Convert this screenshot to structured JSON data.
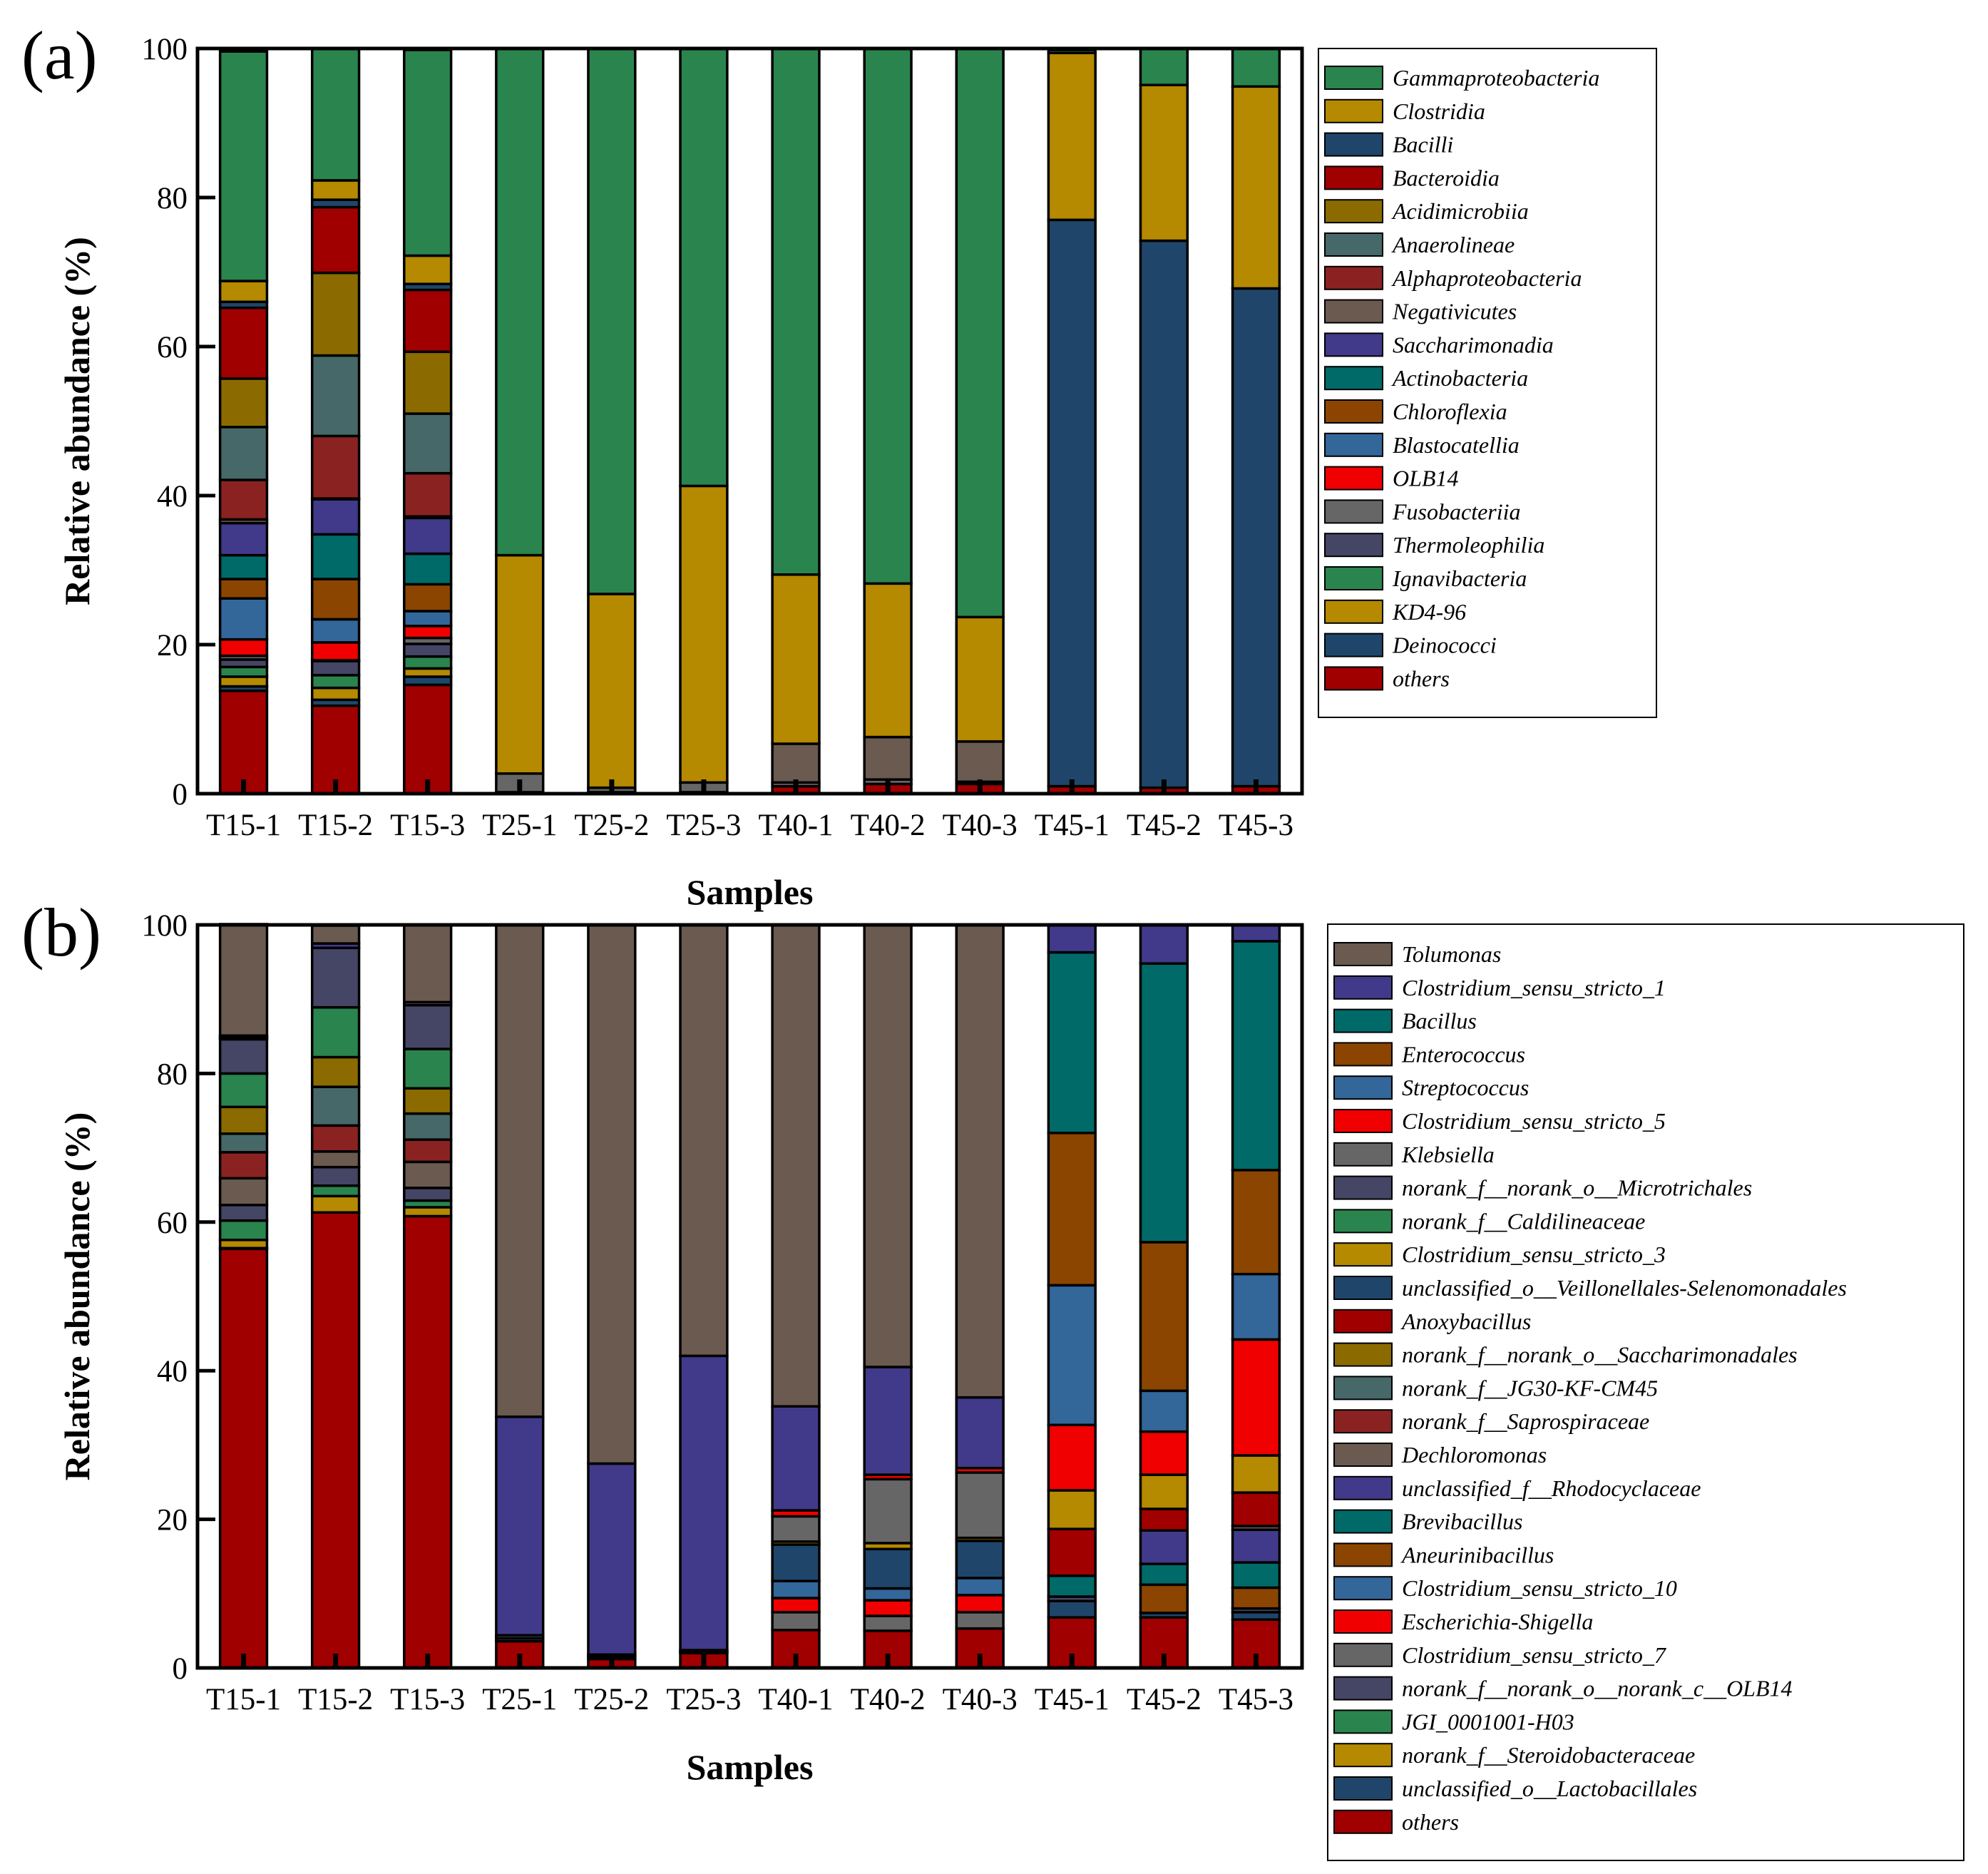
{
  "chart_data": [
    {
      "type": "bar",
      "stacked": true,
      "panel_label": "(a)",
      "xlabel": "Samples",
      "ylabel": "Relative abundance (%)",
      "ylim": [
        0,
        100
      ],
      "yticks": [
        "0",
        "20",
        "40",
        "60",
        "80",
        "100"
      ],
      "legend_position": "right",
      "categories": [
        "T15-1",
        "T15-2",
        "T15-3",
        "T25-1",
        "T25-2",
        "T25-3",
        "T40-1",
        "T40-2",
        "T40-3",
        "T45-1",
        "T45-2",
        "T45-3"
      ],
      "series": [
        {
          "name": "Gammaproteobacteria",
          "color": "#2A844E",
          "values": [
            30.8,
            17.7,
            27.6,
            68.0,
            73.2,
            58.7,
            70.6,
            71.8,
            76.3,
            0.4,
            4.9,
            5.1
          ]
        },
        {
          "name": "Clostridia",
          "color": "#B58900",
          "values": [
            2.8,
            2.6,
            3.8,
            29.3,
            26.0,
            39.8,
            22.7,
            20.6,
            16.7,
            22.4,
            20.9,
            27.1
          ]
        },
        {
          "name": "Bacilli",
          "color": "#1F466A",
          "values": [
            0.8,
            1.0,
            0.8,
            0,
            0,
            0,
            0,
            0,
            0,
            76.0,
            73.4,
            66.8
          ]
        },
        {
          "name": "Bacteroidia",
          "color": "#A00000",
          "values": [
            9.5,
            8.8,
            8.3,
            0,
            0,
            0,
            0,
            0,
            0,
            0,
            0,
            0
          ]
        },
        {
          "name": "Acidimicrobiia",
          "color": "#8B6B00",
          "values": [
            6.5,
            11.1,
            8.3,
            0,
            0,
            0,
            0,
            0,
            0,
            0,
            0,
            0
          ]
        },
        {
          "name": "Anaerolineae",
          "color": "#466868",
          "values": [
            7.1,
            10.8,
            8.0,
            0,
            0,
            0,
            0,
            0,
            0,
            0,
            0,
            0
          ]
        },
        {
          "name": "Alphaproteobacteria",
          "color": "#8B2222",
          "values": [
            5.3,
            8.4,
            5.8,
            0,
            0,
            0,
            0,
            0,
            0,
            0,
            0,
            0
          ]
        },
        {
          "name": "Negativicutes",
          "color": "#6B5A50",
          "values": [
            0.5,
            0.1,
            0.2,
            0,
            0,
            0,
            5.2,
            5.7,
            5.4,
            0,
            0,
            0
          ]
        },
        {
          "name": "Saccharimonadia",
          "color": "#413A8A",
          "values": [
            4.3,
            4.7,
            4.8,
            0,
            0,
            0,
            0,
            0,
            0,
            0,
            0,
            0
          ]
        },
        {
          "name": "Actinobacteria",
          "color": "#006A68",
          "values": [
            3.2,
            6.0,
            4.1,
            0,
            0,
            0,
            0,
            0,
            0,
            0,
            0,
            0
          ]
        },
        {
          "name": "Chloroflexia",
          "color": "#8B4500",
          "values": [
            2.6,
            5.4,
            3.6,
            0,
            0,
            0,
            0,
            0,
            0,
            0,
            0,
            0
          ]
        },
        {
          "name": "Blastocatellia",
          "color": "#336699",
          "values": [
            5.5,
            3.1,
            2.0,
            0,
            0,
            0,
            0,
            0,
            0,
            0,
            0,
            0
          ]
        },
        {
          "name": "OLB14",
          "color": "#F00000",
          "values": [
            2.2,
            2.4,
            1.6,
            0,
            0,
            0,
            0,
            0,
            0,
            0,
            0,
            0
          ]
        },
        {
          "name": "Fusobacteriia",
          "color": "#666666",
          "values": [
            0.5,
            0.1,
            0.8,
            2.5,
            0.6,
            1.3,
            0.5,
            0.6,
            0.3,
            0,
            0,
            0
          ]
        },
        {
          "name": "Thermoleophilia",
          "color": "#454565",
          "values": [
            1.0,
            1.9,
            1.7,
            0,
            0,
            0,
            0,
            0,
            0,
            0,
            0,
            0
          ]
        },
        {
          "name": "Ignavibacteria",
          "color": "#2A844E",
          "values": [
            1.3,
            1.7,
            1.6,
            0,
            0,
            0,
            0,
            0,
            0,
            0,
            0,
            0
          ]
        },
        {
          "name": "KD4-96",
          "color": "#B58900",
          "values": [
            1.3,
            1.6,
            1.1,
            0,
            0,
            0,
            0,
            0,
            0,
            0,
            0,
            0
          ]
        },
        {
          "name": "Deinococci",
          "color": "#1F466A",
          "values": [
            0.6,
            0.8,
            1.1,
            0,
            0,
            0,
            0,
            0,
            0,
            0,
            0,
            0
          ]
        },
        {
          "name": "others",
          "color": "#A00000",
          "values": [
            13.8,
            11.8,
            14.6,
            0.2,
            0.2,
            0.2,
            1.0,
            1.3,
            1.3,
            1.0,
            0.8,
            1.0
          ]
        }
      ]
    },
    {
      "type": "bar",
      "stacked": true,
      "panel_label": "(b)",
      "xlabel": "Samples",
      "ylabel": "Relative abundance (%)",
      "ylim": [
        0,
        100
      ],
      "yticks": [
        "0",
        "20",
        "40",
        "60",
        "80",
        "100"
      ],
      "legend_position": "right",
      "categories": [
        "T15-1",
        "T15-2",
        "T15-3",
        "T25-1",
        "T25-2",
        "T25-3",
        "T40-1",
        "T40-2",
        "T40-3",
        "T45-1",
        "T45-2",
        "T45-3"
      ],
      "series": [
        {
          "name": "Tolumonas",
          "color": "#6B5A50",
          "values": [
            15.0,
            2.4,
            10.4,
            66.2,
            72.5,
            58.0,
            64.8,
            59.5,
            63.6,
            0,
            0,
            0
          ]
        },
        {
          "name": "Clostridium_sensu_stricto_1",
          "color": "#413A8A",
          "values": [
            0.2,
            0.6,
            0,
            29.4,
            25.7,
            39.6,
            14.0,
            14.5,
            9.5,
            3.7,
            5.2,
            2.2
          ]
        },
        {
          "name": "Bacillus",
          "color": "#006A68",
          "values": [
            0,
            0,
            0,
            0,
            0,
            0,
            0,
            0,
            0,
            24.3,
            37.5,
            30.8
          ]
        },
        {
          "name": "Enterococcus",
          "color": "#8B4500",
          "values": [
            0,
            0,
            0,
            0,
            0,
            0,
            0,
            0,
            0,
            20.5,
            20.0,
            14.0
          ]
        },
        {
          "name": "Streptococcus",
          "color": "#336699",
          "values": [
            0,
            0,
            0,
            0,
            0,
            0,
            0,
            0,
            0,
            18.8,
            5.5,
            8.8
          ]
        },
        {
          "name": "Clostridium_sensu_stricto_5",
          "color": "#F00000",
          "values": [
            0.1,
            0,
            0,
            0,
            0,
            0,
            0.8,
            0.6,
            0.6,
            8.8,
            5.8,
            15.6
          ]
        },
        {
          "name": "Klebsiella",
          "color": "#666666",
          "values": [
            0.2,
            0,
            0.4,
            0,
            0,
            0,
            3.4,
            8.6,
            8.8,
            0,
            0,
            0
          ]
        },
        {
          "name": "norank_f__norank_o__Microtrichales",
          "color": "#454565",
          "values": [
            4.6,
            8.0,
            5.9,
            0,
            0,
            0,
            0,
            0,
            0,
            0,
            0,
            0
          ]
        },
        {
          "name": "norank_f__Caldilineaceae",
          "color": "#2A844E",
          "values": [
            4.5,
            6.7,
            5.3,
            0,
            0,
            0,
            0,
            0,
            0,
            0,
            0,
            0
          ]
        },
        {
          "name": "Clostridium_sensu_stricto_3",
          "color": "#B58900",
          "values": [
            0,
            0,
            0,
            0,
            0,
            0,
            0.4,
            0.8,
            0.4,
            5.2,
            4.6,
            5.0
          ]
        },
        {
          "name": "unclassified_o__Veillonellales-Selenomonadales",
          "color": "#1F466A",
          "values": [
            0,
            0,
            0,
            0,
            0,
            0,
            4.9,
            5.3,
            5.0,
            0,
            0,
            0
          ]
        },
        {
          "name": "Anoxybacillus",
          "color": "#A00000",
          "values": [
            0,
            0,
            0,
            0,
            0,
            0,
            0,
            0,
            0,
            6.3,
            2.9,
            4.5
          ]
        },
        {
          "name": "norank_f__norank_o__Saccharimonadales",
          "color": "#8B6B00",
          "values": [
            3.6,
            4.0,
            3.4,
            0,
            0,
            0,
            0,
            0,
            0,
            0,
            0,
            0
          ]
        },
        {
          "name": "norank_f__JG30-KF-CM45",
          "color": "#466868",
          "values": [
            2.5,
            5.2,
            3.5,
            0,
            0,
            0,
            0,
            0,
            0,
            0,
            0,
            0
          ]
        },
        {
          "name": "norank_f__Saprospiraceae",
          "color": "#8B2222",
          "values": [
            3.5,
            3.5,
            3.0,
            0,
            0,
            0,
            0,
            0,
            0,
            0,
            0,
            0
          ]
        },
        {
          "name": "Dechloromonas",
          "color": "#6B5A50",
          "values": [
            3.6,
            2.1,
            3.5,
            0,
            0,
            0,
            0,
            0,
            0,
            0,
            0,
            0.5
          ]
        },
        {
          "name": "unclassified_f__Rhodocyclaceae",
          "color": "#413A8A",
          "values": [
            0,
            0,
            0,
            0,
            0,
            0,
            0,
            0,
            0,
            0,
            4.5,
            4.4
          ]
        },
        {
          "name": "Brevibacillus",
          "color": "#006A68",
          "values": [
            0,
            0,
            0,
            0,
            0,
            0,
            0,
            0,
            0,
            2.8,
            2.8,
            3.4
          ]
        },
        {
          "name": "Aneurinibacillus",
          "color": "#8B4500",
          "values": [
            0,
            0,
            0,
            0,
            0,
            0,
            0,
            0,
            0,
            0,
            3.8,
            2.8
          ]
        },
        {
          "name": "Clostridium_sensu_stricto_10",
          "color": "#336699",
          "values": [
            0,
            0,
            0,
            0,
            0,
            0,
            2.3,
            1.6,
            2.3,
            0,
            0,
            0
          ]
        },
        {
          "name": "Escherichia-Shigella",
          "color": "#F00000",
          "values": [
            0,
            0,
            0,
            0,
            0,
            0,
            1.9,
            2.1,
            2.3,
            0,
            0,
            0
          ]
        },
        {
          "name": "Clostridium_sensu_stricto_7",
          "color": "#666666",
          "values": [
            0,
            0,
            0,
            0.4,
            0.3,
            0.2,
            2.4,
            2.0,
            2.2,
            0,
            0,
            0
          ]
        },
        {
          "name": "norank_f__norank_o__norank_c__OLB14",
          "color": "#454565",
          "values": [
            2.1,
            2.5,
            1.7,
            0,
            0,
            0,
            0,
            0,
            0,
            0.6,
            0,
            0.5
          ]
        },
        {
          "name": "JGI_0001001-H03",
          "color": "#2A844E",
          "values": [
            2.6,
            1.4,
            0.9,
            0,
            0,
            0,
            0,
            0,
            0,
            0,
            0,
            0
          ]
        },
        {
          "name": "norank_f__Steroidobacteraceae",
          "color": "#B58900",
          "values": [
            1.1,
            2.2,
            1.2,
            0,
            0,
            0,
            0,
            0,
            0,
            0,
            0,
            0
          ]
        },
        {
          "name": "unclassified_o__Lactobacillales",
          "color": "#1F466A",
          "values": [
            0.1,
            0,
            0,
            0.4,
            0.3,
            0.2,
            0,
            0,
            0,
            2.2,
            0.6,
            1.0
          ]
        },
        {
          "name": "others",
          "color": "#A00000",
          "values": [
            56.4,
            61.3,
            60.8,
            3.6,
            1.2,
            2.0,
            5.1,
            5.0,
            5.3,
            6.8,
            6.8,
            6.5
          ]
        }
      ]
    }
  ]
}
